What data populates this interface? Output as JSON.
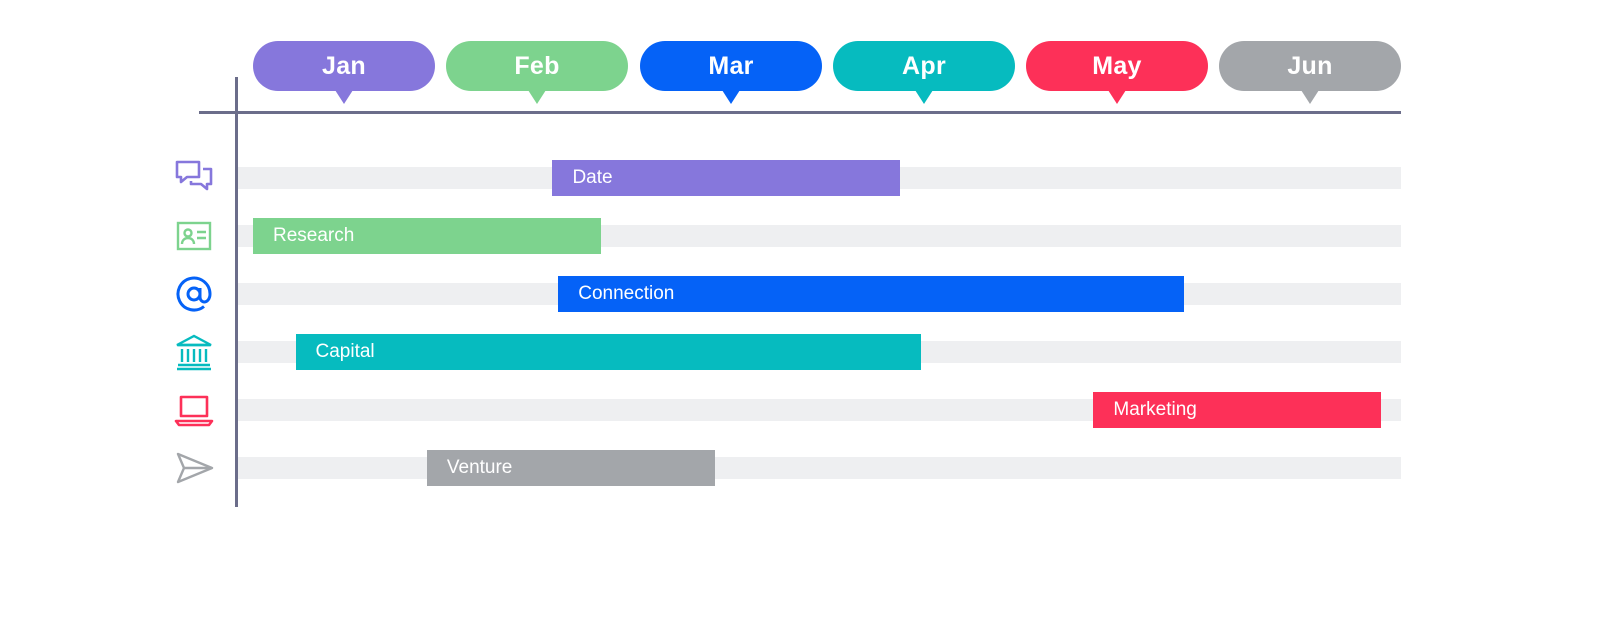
{
  "months": [
    {
      "label": "Jan",
      "color": "#8677dc"
    },
    {
      "label": "Feb",
      "color": "#7dd38e"
    },
    {
      "label": "Mar",
      "color": "#0562f7"
    },
    {
      "label": "Apr",
      "color": "#06bbbf"
    },
    {
      "label": "May",
      "color": "#fd3058"
    },
    {
      "label": "Jun",
      "color": "#a3a6aa"
    }
  ],
  "tasks": [
    {
      "label": "Date",
      "icon": "chat-bubbles-icon",
      "color": "#8677dc",
      "start": 1.55,
      "end": 3.35
    },
    {
      "label": "Research",
      "icon": "id-card-icon",
      "color": "#7dd38e",
      "start": 0.0,
      "end": 1.8
    },
    {
      "label": "Connection",
      "icon": "at-sign-icon",
      "color": "#0562f7",
      "start": 1.58,
      "end": 4.82
    },
    {
      "label": "Capital",
      "icon": "bank-icon",
      "color": "#06bbbf",
      "start": 0.22,
      "end": 3.46
    },
    {
      "label": "Marketing",
      "icon": "laptop-icon",
      "color": "#fd3058",
      "start": 4.35,
      "end": 5.84
    },
    {
      "label": "Venture",
      "icon": "paper-plane-icon",
      "color": "#a3a6aa",
      "start": 0.9,
      "end": 2.39
    }
  ]
}
